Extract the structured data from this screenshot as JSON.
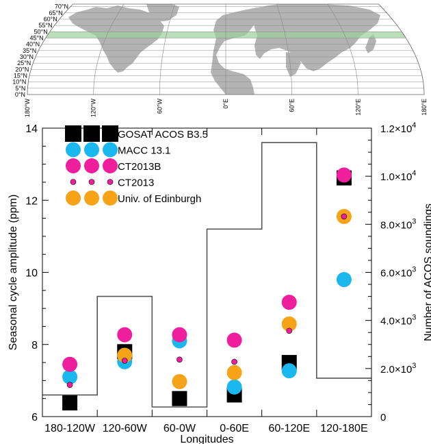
{
  "map": {
    "lat_labels": [
      "0°N",
      "5°N",
      "10°N",
      "15°N",
      "20°N",
      "25°N",
      "30°N",
      "35°N",
      "40°N",
      "45°N",
      "50°N",
      "55°N",
      "60°N",
      "65°N",
      "70°N"
    ],
    "lon_labels": [
      "180°W",
      "120°W",
      "60°W",
      "0°E",
      "60°E",
      "120°E",
      "180°E"
    ],
    "land_color": "#b3b3b3",
    "highlight_band_color": "#9ccf9c",
    "highlight_band_lat": [
      45,
      50
    ]
  },
  "chart_data": {
    "type": "scatter",
    "xlabel": "Longitudes",
    "ylabel": "Seasonal cycle amplitude (ppm)",
    "y2label": "Number of ACOS soundings",
    "categories": [
      "180-120W",
      "120-60W",
      "60-0W",
      "0-60E",
      "60-120E",
      "120-180E"
    ],
    "ylim": [
      6,
      14
    ],
    "yticks": [
      "6",
      "8",
      "10",
      "12",
      "14"
    ],
    "y2lim": [
      0,
      12000
    ],
    "y2ticks": [
      {
        "value": 0,
        "base": "0",
        "exp": ""
      },
      {
        "value": 2000,
        "base": "2.0×10",
        "exp": "3"
      },
      {
        "value": 4000,
        "base": "4.0×10",
        "exp": "3"
      },
      {
        "value": 6000,
        "base": "6.0×10",
        "exp": "3"
      },
      {
        "value": 8000,
        "base": "8.0×10",
        "exp": "3"
      },
      {
        "value": 10000,
        "base": "1.0×10",
        "exp": "4"
      },
      {
        "value": 12000,
        "base": "1.2×10",
        "exp": "4"
      }
    ],
    "series": [
      {
        "name": "GOSAT ACOS B3.5",
        "marker": "square",
        "color": "#000000",
        "values": [
          6.38,
          7.8,
          6.5,
          6.6,
          7.5,
          12.62
        ]
      },
      {
        "name": "MACC 13.1",
        "marker": "circle",
        "color": "#1ab8ef",
        "values": [
          7.1,
          7.52,
          8.1,
          6.82,
          7.27,
          9.8
        ]
      },
      {
        "name": "CT2013B",
        "marker": "circle",
        "color": "#ee1e9c",
        "values": [
          7.45,
          8.27,
          8.27,
          8.12,
          9.17,
          12.7
        ]
      },
      {
        "name": "CT2013",
        "marker": "small-circle",
        "color": "#ee1e9c",
        "values": [
          6.88,
          7.55,
          7.58,
          7.52,
          8.38,
          11.55
        ]
      },
      {
        "name": "Univ. of Edinburgh",
        "marker": "circle",
        "color": "#f6a317",
        "values": [
          null,
          7.7,
          6.97,
          7.22,
          8.57,
          11.55
        ]
      }
    ],
    "soundings": [
      900,
      5000,
      400,
      7800,
      11400,
      1600
    ]
  }
}
